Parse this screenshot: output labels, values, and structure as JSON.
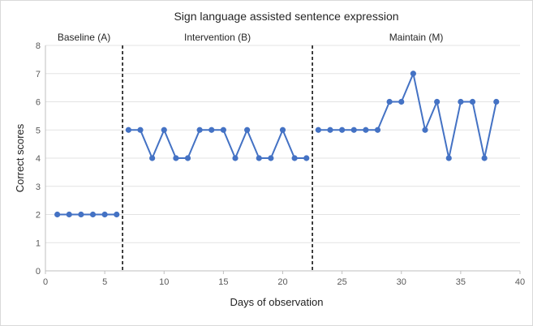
{
  "chart_data": {
    "type": "line",
    "title": "Sign language assisted sentence expression",
    "xlabel": "Days of observation",
    "ylabel": "Correct scores",
    "xlim": [
      0,
      40
    ],
    "ylim": [
      0,
      8
    ],
    "xticks": [
      "0",
      "5",
      "10",
      "15",
      "20",
      "25",
      "30",
      "35",
      "40"
    ],
    "yticks": [
      "0",
      "1",
      "2",
      "3",
      "4",
      "5",
      "6",
      "7",
      "8"
    ],
    "grid": "horizontal",
    "color": "#4472C4",
    "phase_boundaries": [
      6.5,
      22.5
    ],
    "phases": [
      {
        "label": "Baseline (A)",
        "x": [
          1,
          2,
          3,
          4,
          5,
          6
        ],
        "y": [
          2,
          2,
          2,
          2,
          2,
          2
        ]
      },
      {
        "label": "Intervention (B)",
        "x": [
          7,
          8,
          9,
          10,
          11,
          12,
          13,
          14,
          15,
          16,
          17,
          18,
          19,
          20,
          21,
          22
        ],
        "y": [
          5,
          5,
          4,
          5,
          4,
          4,
          5,
          5,
          5,
          4,
          5,
          4,
          4,
          5,
          4,
          4
        ]
      },
      {
        "label": "Maintain (M)",
        "x": [
          23,
          24,
          25,
          26,
          27,
          28,
          29,
          30,
          31,
          32,
          33,
          34,
          35,
          36,
          37,
          38
        ],
        "y": [
          5,
          5,
          5,
          5,
          5,
          5,
          6,
          6,
          7,
          5,
          6,
          4,
          6,
          6,
          4,
          6
        ]
      }
    ]
  }
}
